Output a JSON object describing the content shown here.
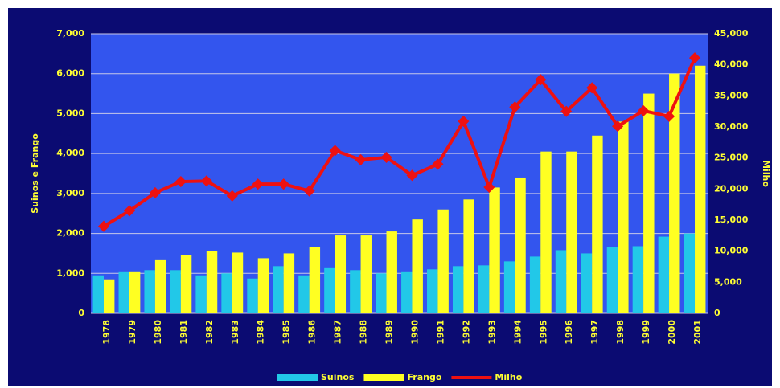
{
  "chart_data": {
    "type": "bar_line",
    "categories": [
      "1978",
      "1979",
      "1980",
      "1981",
      "1982",
      "1983",
      "1984",
      "1985",
      "1986",
      "1987",
      "1988",
      "1989",
      "1990",
      "1991",
      "1992",
      "1993",
      "1994",
      "1995",
      "1996",
      "1997",
      "1998",
      "1999",
      "2000",
      "2001"
    ],
    "series": [
      {
        "name": "Suinos",
        "color": "#22c8e8",
        "type": "bar",
        "values": [
          950,
          1050,
          1080,
          1080,
          950,
          1000,
          870,
          1180,
          950,
          1150,
          1080,
          1000,
          1050,
          1100,
          1180,
          1200,
          1300,
          1420,
          1580,
          1500,
          1650,
          1680,
          1920,
          2000
        ]
      },
      {
        "name": "Frango",
        "color": "#ffff22",
        "type": "bar",
        "values": [
          850,
          1050,
          1330,
          1450,
          1550,
          1520,
          1380,
          1500,
          1650,
          1950,
          1950,
          2050,
          2350,
          2600,
          2850,
          3150,
          3400,
          4050,
          4050,
          4450,
          4800,
          5500,
          6000,
          6200
        ]
      },
      {
        "name": "Milho",
        "color": "#ee1111",
        "type": "line",
        "axis": "y2",
        "values": [
          14000,
          16500,
          19400,
          21200,
          21300,
          18900,
          20800,
          20800,
          19700,
          26200,
          24700,
          25100,
          22200,
          24000,
          30900,
          20300,
          33200,
          37600,
          32500,
          36300,
          30100,
          32600,
          31700,
          41100
        ]
      }
    ],
    "ylabel": "Suinos e Frango",
    "y2label": "Milho",
    "ylim": [
      0,
      7000
    ],
    "yticks": [
      0,
      {
        "value": 1000,
        "label": "1,000"
      },
      {
        "value": 2000,
        "label": "2,000"
      },
      {
        "value": 3000,
        "label": "3,000"
      },
      {
        "value": 4000,
        "label": "4,000"
      },
      {
        "value": 5000,
        "label": "5,000"
      },
      {
        "value": 6000,
        "label": "6,000"
      },
      {
        "value": 7000,
        "label": "7,000"
      }
    ],
    "y2lim": [
      0,
      45000
    ],
    "y2ticks": [
      0,
      {
        "value": 5000,
        "label": "5,000"
      },
      {
        "value": 10000,
        "label": "10,000"
      },
      {
        "value": 15000,
        "label": "15,000"
      },
      {
        "value": 20000,
        "label": "20,000"
      },
      {
        "value": 25000,
        "label": "25,000"
      },
      {
        "value": 30000,
        "label": "30,000"
      },
      {
        "value": 35000,
        "label": "35,000"
      },
      {
        "value": 40000,
        "label": "40,000"
      },
      {
        "value": 45000,
        "label": "45,000"
      }
    ],
    "grid": true,
    "legend": "bottom"
  }
}
